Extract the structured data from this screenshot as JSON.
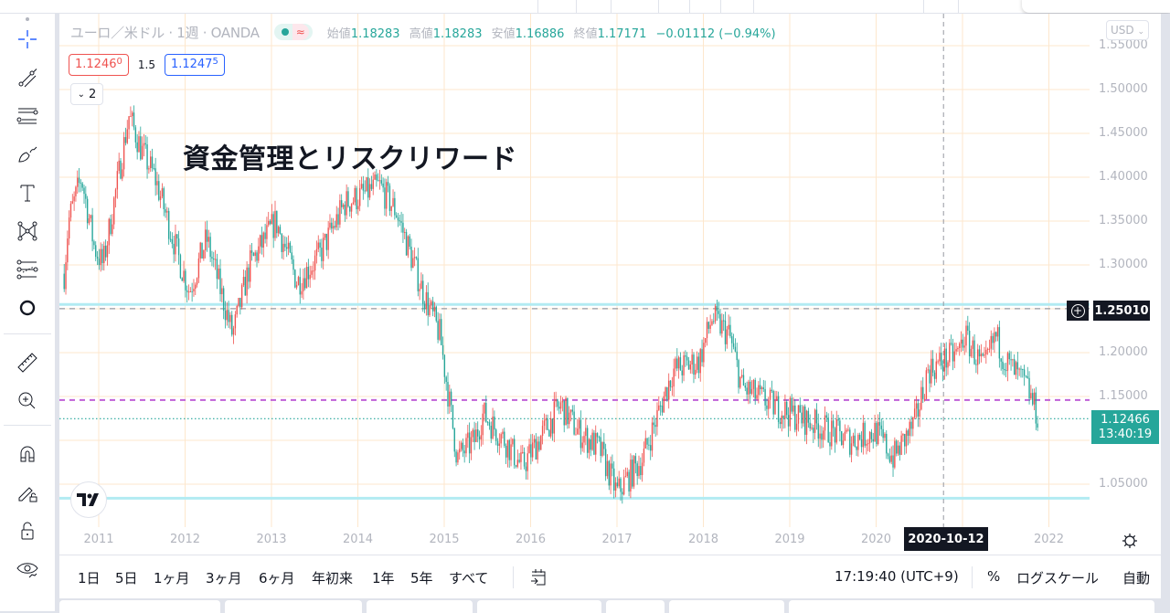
{
  "colors": {
    "up": "#ef5350",
    "down": "#26a69a",
    "grid": "#fde7cd",
    "support_line": "#b2ebf2",
    "alert_line": "#c060d8",
    "last_price_line": "#26a69a",
    "crosshair": "#9598a1",
    "accent_blue": "#2962ff"
  },
  "legend": {
    "symbol": "ユーロ／米ドル · 1週 · OANDA",
    "ohlc": [
      {
        "k": "始値",
        "v": "1.18283"
      },
      {
        "k": "高値",
        "v": "1.18283"
      },
      {
        "k": "安値",
        "v": "1.16886"
      },
      {
        "k": "終値",
        "v": "1.17171"
      }
    ],
    "change": "−0.01112 (−0.94%)",
    "collapse_count": "2"
  },
  "trade": {
    "sell_main": "1.1246",
    "sell_sup": "0",
    "spread": "1.5",
    "buy_main": "1.1247",
    "buy_sup": "5"
  },
  "annotation": "資金管理とリスクリワード",
  "price_scale": {
    "currency": "USD",
    "labels": [
      "1.55000",
      "1.50000",
      "1.45000",
      "1.40000",
      "1.35000",
      "1.30000",
      "1.25000",
      "1.20000",
      "1.15000",
      "1.10000",
      "1.05000"
    ],
    "crosshair_price": "1.25010",
    "last_price": "1.12466",
    "countdown": "13:40:19"
  },
  "time_scale": {
    "labels": [
      "2011",
      "2012",
      "2013",
      "2014",
      "2015",
      "2016",
      "2017",
      "2018",
      "2019",
      "2020",
      "2022"
    ],
    "crosshair_date": "2020-10-12"
  },
  "bottom_bar": {
    "ranges": [
      "1日",
      "5日",
      "1ヶ月",
      "3ヶ月",
      "6ヶ月",
      "年初来",
      "1年",
      "5年",
      "すべて"
    ],
    "time": "17:19:40 (UTC+9)",
    "percent": "%",
    "log": "ログスケール",
    "auto": "自動"
  },
  "left_toolbar": [
    "crosshair",
    "trend-line",
    "horizontal-lines",
    "brush",
    "text",
    "pattern",
    "forecast",
    "circle",
    "ruler",
    "zoom-in",
    "magnet",
    "lock-drawing",
    "lock",
    "eye"
  ],
  "chart_data": {
    "type": "candlestick",
    "title": "ユーロ／米ドル · 1週 · OANDA",
    "xlabel": "",
    "ylabel": "USD",
    "ylim": [
      1.03,
      1.56
    ],
    "x_range": [
      "2010-08",
      "2021-12"
    ],
    "grid": true,
    "waypoints": [
      {
        "t": 2010.6,
        "p": 1.29
      },
      {
        "t": 2010.65,
        "p": 1.35
      },
      {
        "t": 2010.8,
        "p": 1.4
      },
      {
        "t": 2010.95,
        "p": 1.32
      },
      {
        "t": 2011.05,
        "p": 1.3
      },
      {
        "t": 2011.35,
        "p": 1.47
      },
      {
        "t": 2011.5,
        "p": 1.43
      },
      {
        "t": 2011.65,
        "p": 1.4
      },
      {
        "t": 2011.8,
        "p": 1.35
      },
      {
        "t": 2011.95,
        "p": 1.3
      },
      {
        "t": 2012.05,
        "p": 1.27
      },
      {
        "t": 2012.25,
        "p": 1.33
      },
      {
        "t": 2012.55,
        "p": 1.22
      },
      {
        "t": 2012.75,
        "p": 1.3
      },
      {
        "t": 2013.05,
        "p": 1.35
      },
      {
        "t": 2013.3,
        "p": 1.28
      },
      {
        "t": 2013.55,
        "p": 1.31
      },
      {
        "t": 2013.85,
        "p": 1.37
      },
      {
        "t": 2014.25,
        "p": 1.39
      },
      {
        "t": 2014.45,
        "p": 1.36
      },
      {
        "t": 2014.75,
        "p": 1.27
      },
      {
        "t": 2014.95,
        "p": 1.22
      },
      {
        "t": 2015.15,
        "p": 1.08
      },
      {
        "t": 2015.35,
        "p": 1.1
      },
      {
        "t": 2015.45,
        "p": 1.13
      },
      {
        "t": 2015.7,
        "p": 1.1
      },
      {
        "t": 2015.9,
        "p": 1.07
      },
      {
        "t": 2016.35,
        "p": 1.14
      },
      {
        "t": 2016.55,
        "p": 1.11
      },
      {
        "t": 2016.8,
        "p": 1.09
      },
      {
        "t": 2017.0,
        "p": 1.04
      },
      {
        "t": 2017.3,
        "p": 1.08
      },
      {
        "t": 2017.65,
        "p": 1.18
      },
      {
        "t": 2017.95,
        "p": 1.19
      },
      {
        "t": 2018.1,
        "p": 1.24
      },
      {
        "t": 2018.3,
        "p": 1.22
      },
      {
        "t": 2018.45,
        "p": 1.16
      },
      {
        "t": 2018.8,
        "p": 1.14
      },
      {
        "t": 2019.25,
        "p": 1.12
      },
      {
        "t": 2019.7,
        "p": 1.1
      },
      {
        "t": 2020.0,
        "p": 1.11
      },
      {
        "t": 2020.2,
        "p": 1.08
      },
      {
        "t": 2020.45,
        "p": 1.12
      },
      {
        "t": 2020.6,
        "p": 1.18
      },
      {
        "t": 2020.95,
        "p": 1.2
      },
      {
        "t": 2021.02,
        "p": 1.22
      },
      {
        "t": 2021.25,
        "p": 1.18
      },
      {
        "t": 2021.38,
        "p": 1.22
      },
      {
        "t": 2021.5,
        "p": 1.19
      },
      {
        "t": 2021.75,
        "p": 1.16
      },
      {
        "t": 2021.88,
        "p": 1.125
      }
    ],
    "horizontal_lines": [
      {
        "name": "resistance",
        "price": 1.255,
        "style": "solid",
        "color": "#b2ebf2"
      },
      {
        "name": "support",
        "price": 1.034,
        "style": "solid",
        "color": "#b2ebf2"
      },
      {
        "name": "crosshair-price",
        "price": 1.2501,
        "style": "dashed",
        "color": "#9598a1"
      },
      {
        "name": "alert",
        "price": 1.146,
        "style": "dashed",
        "color": "#c060d8"
      },
      {
        "name": "last-price",
        "price": 1.12466,
        "style": "dotted",
        "color": "#26a69a"
      }
    ],
    "crosshair_time": "2020-10-12",
    "last": {
      "open": 1.18283,
      "high": 1.18283,
      "low": 1.16886,
      "close": 1.17171,
      "change": -0.01112,
      "change_pct": -0.94
    }
  }
}
